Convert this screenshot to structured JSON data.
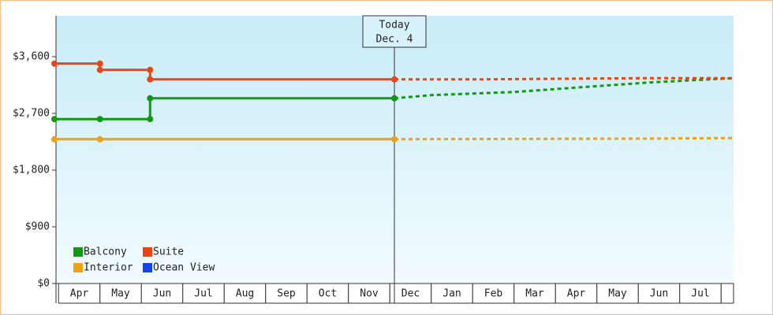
{
  "chart_data": {
    "type": "step-line",
    "categories": [
      "Apr",
      "May",
      "Jun",
      "Jul",
      "Aug",
      "Sep",
      "Oct",
      "Nov",
      "Dec",
      "Jan",
      "Feb",
      "Mar",
      "Apr",
      "May",
      "Jun",
      "Jul",
      null
    ],
    "xlim": [
      -0.1,
      16.3
    ],
    "ylim": [
      0,
      4250
    ],
    "yticks": [
      {
        "value": 0,
        "label": "$0"
      },
      {
        "value": 900,
        "label": "$900"
      },
      {
        "value": 1800,
        "label": "$1,800"
      },
      {
        "value": 2700,
        "label": "$2,700"
      },
      {
        "value": 3600,
        "label": "$3,600"
      }
    ],
    "today": {
      "x": 8.11,
      "label": "Today",
      "date": "Dec. 4"
    },
    "legend_position": "lower left",
    "series": [
      {
        "name": "Balcony",
        "color": "#119911",
        "x": [
          -0.1,
          1,
          2.21,
          2.21,
          8.11
        ],
        "values": [
          2610,
          2610,
          2610,
          2940,
          2940
        ],
        "projected": {
          "x": [
            8.11,
            9,
            11,
            14.24,
            16.3
          ],
          "values": [
            2940,
            2990,
            3040,
            3190,
            3260
          ]
        }
      },
      {
        "name": "Suite",
        "color": "#ee4411",
        "x": [
          -0.1,
          1,
          1,
          2.21,
          2.21,
          8.11
        ],
        "values": [
          3490,
          3490,
          3390,
          3390,
          3240,
          3240
        ],
        "projected": {
          "x": [
            8.11,
            10,
            14.24,
            16.3
          ],
          "values": [
            3240,
            3240,
            3260,
            3260
          ]
        }
      },
      {
        "name": "Interior",
        "color": "#f0a010",
        "x": [
          -0.1,
          1,
          8.11
        ],
        "values": [
          2290,
          2290,
          2290
        ],
        "projected": {
          "x": [
            8.11,
            14.24,
            16.3
          ],
          "values": [
            2290,
            2300,
            2310
          ]
        }
      },
      {
        "name": "Ocean View",
        "color": "#1144ee",
        "x": [],
        "values": [],
        "projected": {
          "x": [],
          "values": []
        }
      }
    ]
  }
}
